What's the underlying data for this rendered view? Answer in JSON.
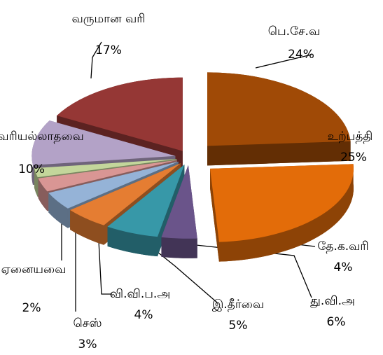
{
  "chart_data": {
    "type": "pie",
    "categories": [
      "பெ.சே.வ",
      "உற்பத்தி",
      "தே.க.வரி",
      "து.வி.அ",
      "இ.தீர்வை",
      "வி.வி.ப.அ",
      "செஸ்",
      "ஏனையவை",
      "வரியல்லாதவை",
      "வருமான வரி"
    ],
    "values": [
      24,
      25,
      4,
      6,
      5,
      4,
      3,
      2,
      10,
      17
    ],
    "value_labels": [
      "24%",
      "25%",
      "4%",
      "6%",
      "5%",
      "4%",
      "3%",
      "2%",
      "10%",
      "17%"
    ],
    "colors": [
      "#a04a06",
      "#e36c09",
      "#6a548a",
      "#3798a8",
      "#e57d32",
      "#95b3d7",
      "#d99694",
      "#c3d69b",
      "#b3a2c7",
      "#953735"
    ]
  }
}
